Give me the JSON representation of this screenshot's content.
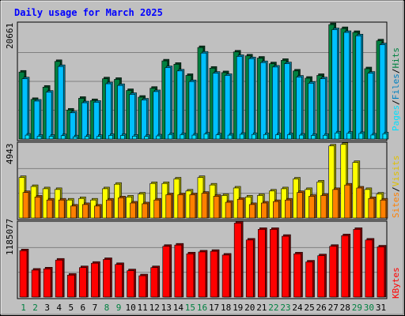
{
  "title": "Daily usage for March 2025",
  "colors": {
    "background": "#c0c0c0",
    "panel": "#c0c0c0",
    "title": "#0000ff",
    "hits": "#008040",
    "files": "#00c0ff",
    "pages": "#00e0ff",
    "visits": "#ffff00",
    "sites": "#ff8000",
    "kbytes": "#ff0000",
    "weekday_label": "#000000",
    "weekend_label": "#008040"
  },
  "legend": {
    "top": {
      "pages": "Pages",
      "files": "Files",
      "hits": "Hits",
      "sep": "/"
    },
    "mid": {
      "sites": "Sites",
      "visits": "Visits",
      "sep": "/"
    },
    "bottom": {
      "kbytes": "KBytes"
    }
  },
  "chart_data": [
    {
      "type": "bar",
      "panel": "hits-files-pages",
      "ymax_label": "20661",
      "ylim": [
        0,
        20661
      ],
      "categories": [
        "1",
        "2",
        "3",
        "4",
        "5",
        "6",
        "7",
        "8",
        "9",
        "10",
        "11",
        "12",
        "13",
        "14",
        "15",
        "16",
        "17",
        "18",
        "19",
        "20",
        "21",
        "22",
        "23",
        "24",
        "25",
        "26",
        "27",
        "28",
        "29",
        "30",
        "31"
      ],
      "series": [
        {
          "name": "Hits",
          "values": [
            12000,
            7100,
            9300,
            13900,
            5200,
            7300,
            6900,
            10800,
            10700,
            8700,
            7500,
            9100,
            14000,
            13400,
            11400,
            16400,
            12700,
            11900,
            15600,
            14900,
            14500,
            13500,
            14100,
            12200,
            10900,
            11400,
            20500,
            19800,
            19100,
            12600,
            17600
          ]
        },
        {
          "name": "Files",
          "values": [
            10800,
            6800,
            8400,
            13000,
            4700,
            6500,
            6600,
            9900,
            9600,
            8000,
            7000,
            8500,
            12800,
            12200,
            10300,
            15400,
            11800,
            11400,
            14800,
            14400,
            13700,
            12900,
            13500,
            11100,
            10000,
            10800,
            19600,
            19100,
            18500,
            11800,
            16900
          ]
        },
        {
          "name": "Pages",
          "values": [
            700,
            500,
            500,
            600,
            400,
            450,
            480,
            650,
            640,
            520,
            460,
            560,
            800,
            780,
            700,
            900,
            750,
            700,
            850,
            820,
            800,
            760,
            780,
            700,
            650,
            670,
            1100,
            1050,
            1000,
            720,
            950
          ]
        }
      ]
    },
    {
      "type": "bar",
      "panel": "visits-sites",
      "ymax_label": "4943",
      "ylim": [
        0,
        4943
      ],
      "categories": [
        "1",
        "2",
        "3",
        "4",
        "5",
        "6",
        "7",
        "8",
        "9",
        "10",
        "11",
        "12",
        "13",
        "14",
        "15",
        "16",
        "17",
        "18",
        "19",
        "20",
        "21",
        "22",
        "23",
        "24",
        "25",
        "26",
        "27",
        "28",
        "29",
        "30",
        "31"
      ],
      "series": [
        {
          "name": "Visits",
          "values": [
            2700,
            2100,
            1950,
            1900,
            1200,
            1300,
            1200,
            1950,
            2250,
            1400,
            1600,
            2300,
            2300,
            2600,
            1800,
            2700,
            2200,
            1500,
            2000,
            1400,
            1500,
            1800,
            1950,
            2600,
            1900,
            2400,
            4800,
            4900,
            3700,
            1900,
            1600
          ]
        },
        {
          "name": "Sites",
          "values": [
            1700,
            1400,
            1200,
            1200,
            800,
            900,
            800,
            1200,
            1350,
            1000,
            950,
            1200,
            1550,
            1550,
            1550,
            1650,
            1450,
            1050,
            1250,
            900,
            1000,
            1100,
            1200,
            1700,
            1450,
            1500,
            1900,
            2200,
            2000,
            1300,
            1200
          ]
        }
      ]
    },
    {
      "type": "bar",
      "panel": "kbytes",
      "ymax_label": "1185077",
      "ylim": [
        0,
        1185077
      ],
      "categories": [
        "1",
        "2",
        "3",
        "4",
        "5",
        "6",
        "7",
        "8",
        "9",
        "10",
        "11",
        "12",
        "13",
        "14",
        "15",
        "16",
        "17",
        "18",
        "19",
        "20",
        "21",
        "22",
        "23",
        "24",
        "25",
        "26",
        "27",
        "28",
        "29",
        "30",
        "31"
      ],
      "series": [
        {
          "name": "KBytes",
          "values": [
            740000,
            430000,
            450000,
            590000,
            350000,
            470000,
            540000,
            600000,
            520000,
            420000,
            340000,
            470000,
            810000,
            830000,
            690000,
            720000,
            730000,
            670000,
            1180000,
            910000,
            1080000,
            1080000,
            970000,
            690000,
            560000,
            660000,
            810000,
            980000,
            1080000,
            910000,
            800000
          ]
        }
      ]
    }
  ],
  "x_labels": [
    {
      "label": "1",
      "weekend": true
    },
    {
      "label": "2",
      "weekend": true
    },
    {
      "label": "3",
      "weekend": false
    },
    {
      "label": "4",
      "weekend": false
    },
    {
      "label": "5",
      "weekend": false
    },
    {
      "label": "6",
      "weekend": false
    },
    {
      "label": "7",
      "weekend": false
    },
    {
      "label": "8",
      "weekend": true
    },
    {
      "label": "9",
      "weekend": true
    },
    {
      "label": "10",
      "weekend": false
    },
    {
      "label": "11",
      "weekend": false
    },
    {
      "label": "12",
      "weekend": false
    },
    {
      "label": "13",
      "weekend": false
    },
    {
      "label": "14",
      "weekend": false
    },
    {
      "label": "15",
      "weekend": true
    },
    {
      "label": "16",
      "weekend": true
    },
    {
      "label": "17",
      "weekend": false
    },
    {
      "label": "18",
      "weekend": false
    },
    {
      "label": "19",
      "weekend": false
    },
    {
      "label": "20",
      "weekend": false
    },
    {
      "label": "21",
      "weekend": false
    },
    {
      "label": "22",
      "weekend": true
    },
    {
      "label": "23",
      "weekend": true
    },
    {
      "label": "24",
      "weekend": false
    },
    {
      "label": "25",
      "weekend": false
    },
    {
      "label": "26",
      "weekend": false
    },
    {
      "label": "27",
      "weekend": false
    },
    {
      "label": "28",
      "weekend": false
    },
    {
      "label": "29",
      "weekend": true
    },
    {
      "label": "30",
      "weekend": true
    },
    {
      "label": "31",
      "weekend": false
    }
  ]
}
